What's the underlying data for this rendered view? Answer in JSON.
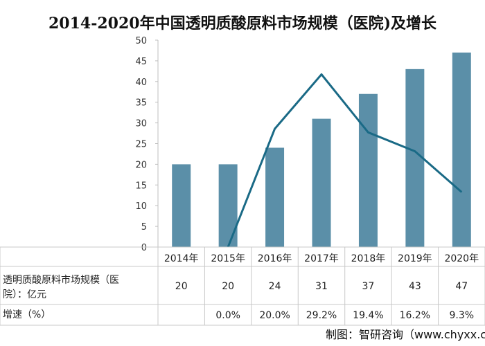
{
  "chart_data": {
    "type": "bar",
    "title": "2014-2020年中国透明质酸原料市场规模（医院)及增长",
    "categories": [
      "2014年",
      "2015年",
      "2016年",
      "2017年",
      "2018年",
      "2019年",
      "2020年"
    ],
    "ylim": [
      0,
      50
    ],
    "yticks": [
      0,
      5,
      10,
      15,
      20,
      25,
      30,
      35,
      40,
      45,
      50
    ],
    "series": [
      {
        "name": "透明质酸原料市场规模（医院）：亿元",
        "type": "bar",
        "color": "#5b8fa8",
        "values": [
          20,
          20,
          24,
          31,
          37,
          43,
          47
        ]
      },
      {
        "name": "增速（%）",
        "type": "line",
        "color": "#1a6a86",
        "values": [
          null,
          0.0,
          20.0,
          29.2,
          19.4,
          16.2,
          9.3
        ],
        "labels": [
          "",
          "0.0%",
          "20.0%",
          "29.2%",
          "19.4%",
          "16.2%",
          "9.3%"
        ],
        "axis_range": [
          0,
          35
        ]
      }
    ],
    "table": {
      "row1_header_line1": "透明质酸原料市场规模（医",
      "row1_header_line2": "院）：亿元",
      "row2_header": "增速（%）"
    },
    "grid": false
  },
  "footer": "制图：智研咨询（www.chyxx.com）"
}
